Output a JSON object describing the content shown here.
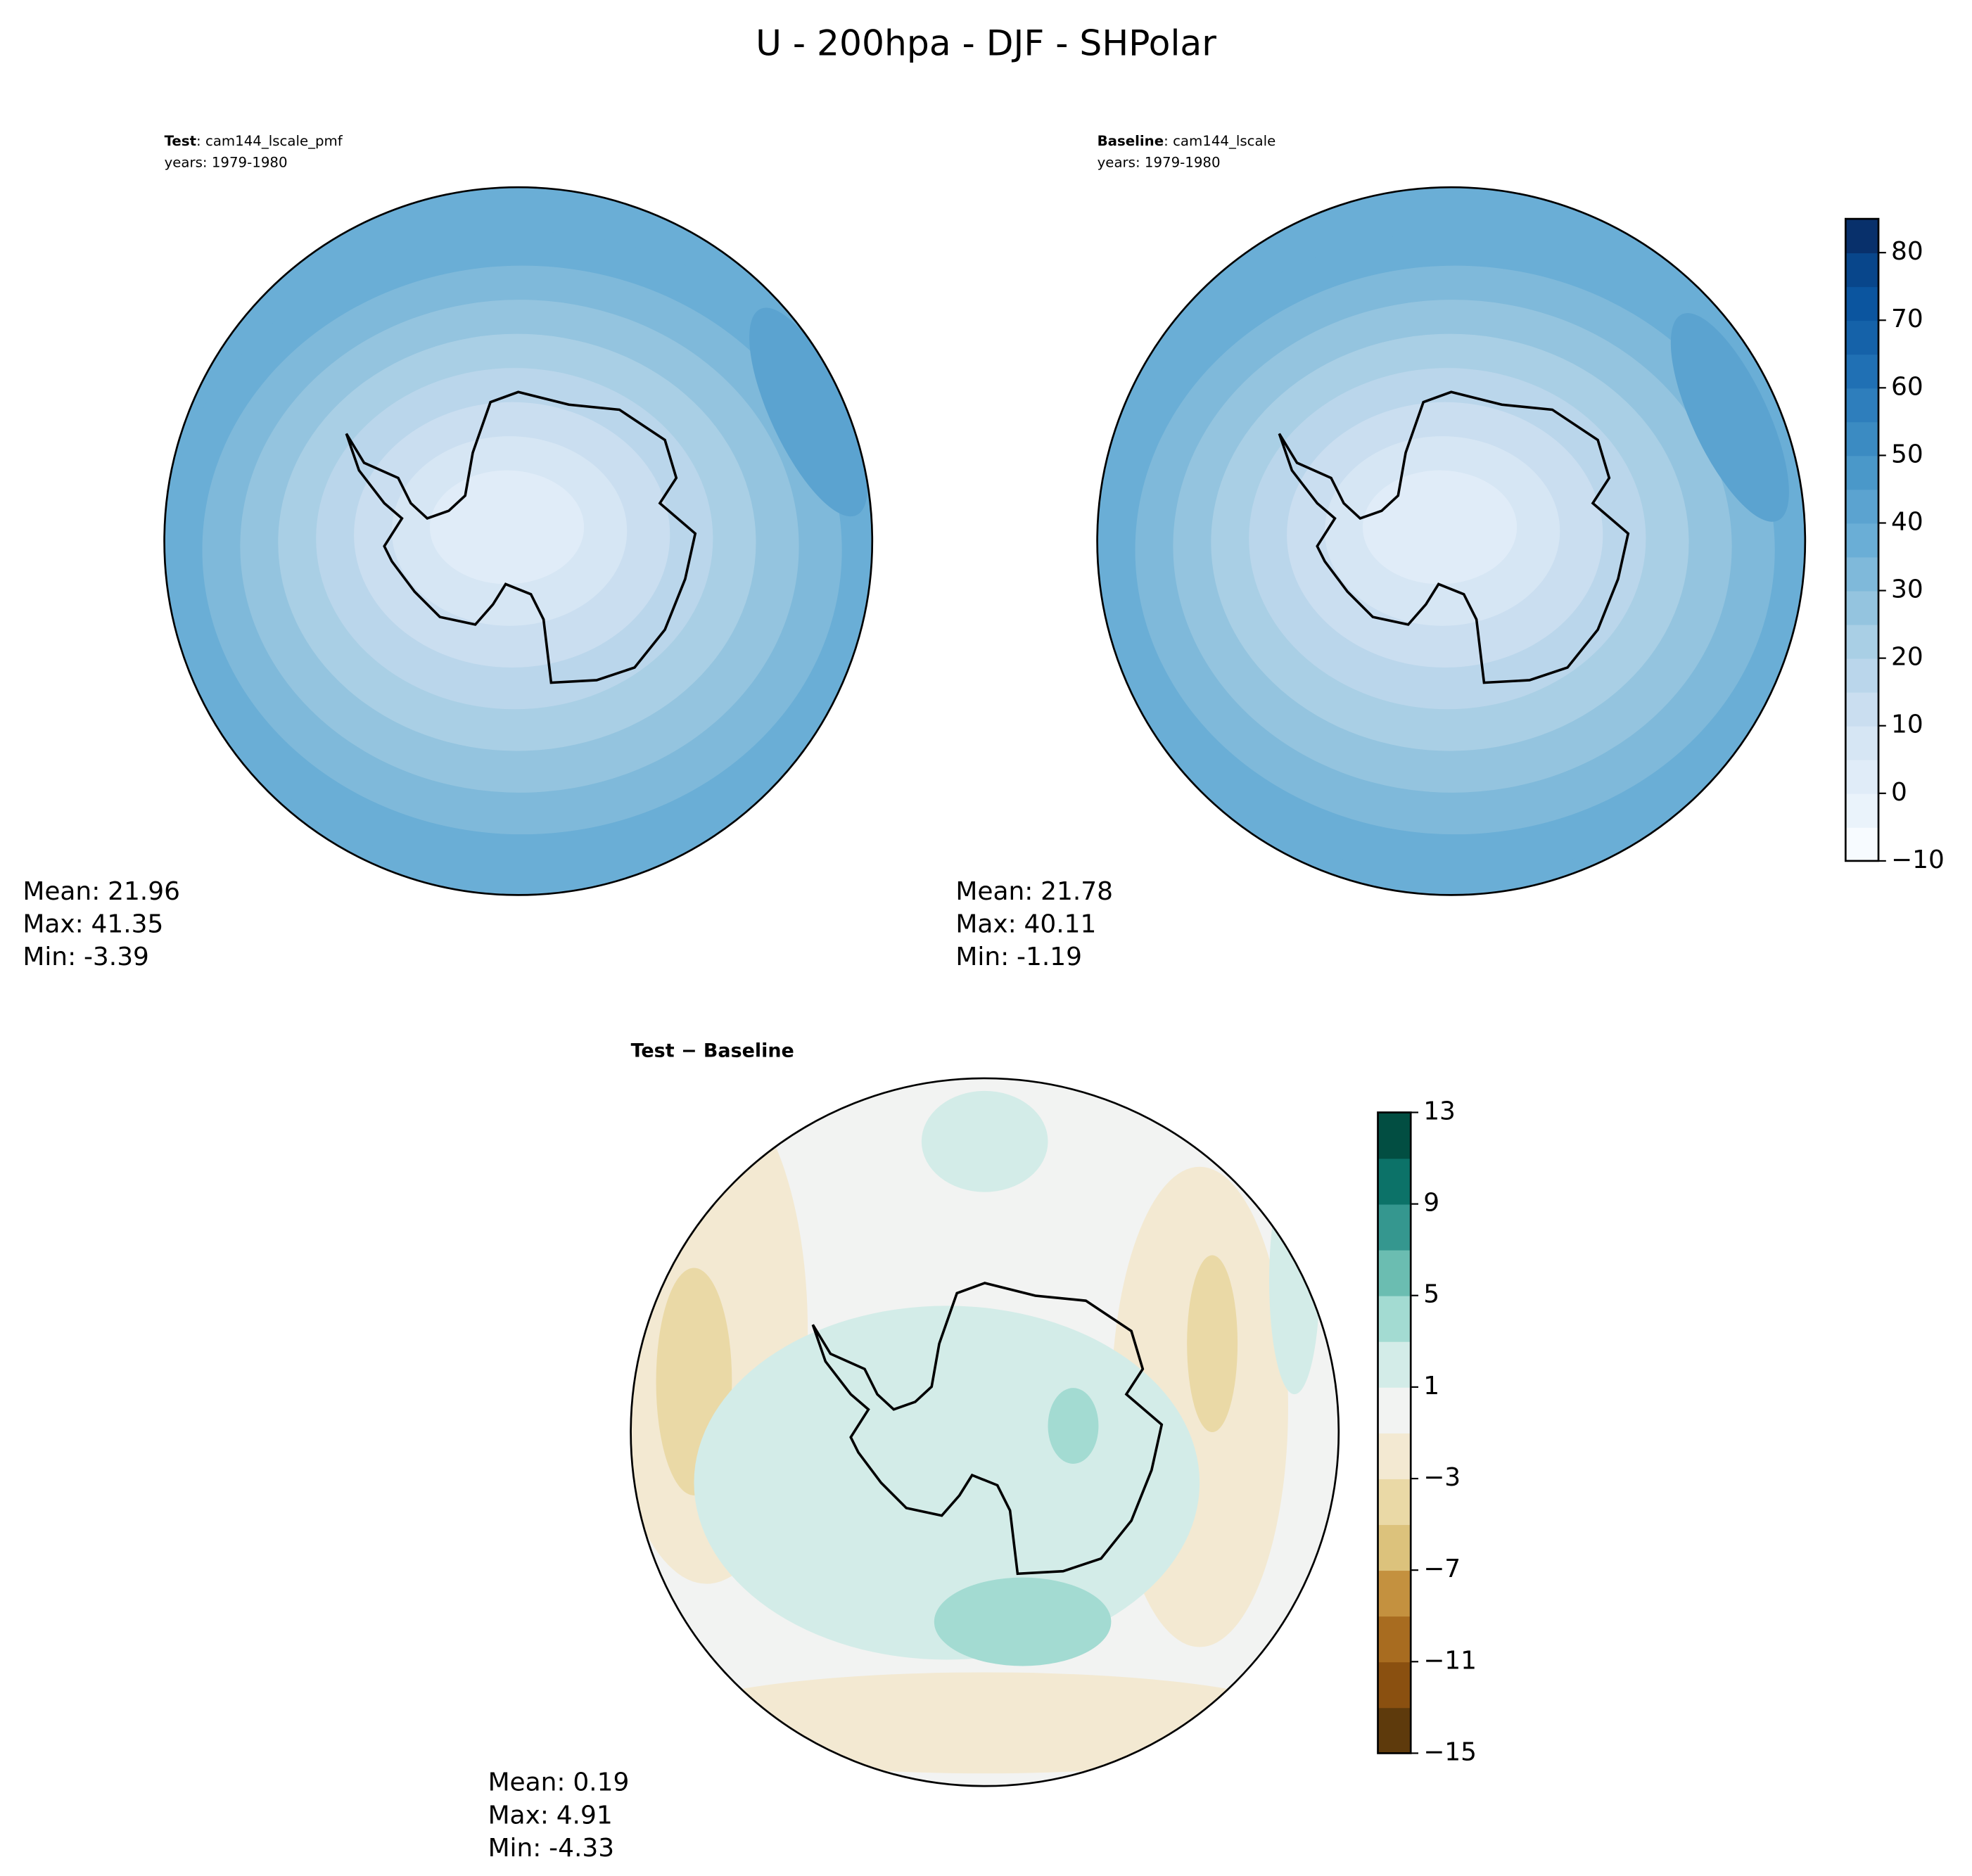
{
  "title": "U - 200hpa - DJF - SHPolar",
  "chart_data": [
    {
      "type": "contour",
      "case_label": "Test",
      "case_name": ": cam144_lscale_pmf",
      "subtitle": "years: 1979-1980",
      "stats": [
        {
          "label": "Mean:",
          "value": 21.96
        },
        {
          "label": "Max:",
          "value": 41.35
        },
        {
          "label": "Min:",
          "value": -3.39
        }
      ]
    },
    {
      "type": "contour",
      "case_label": "Baseline",
      "case_name": ": cam144_lscale",
      "subtitle": "years: 1979-1980",
      "stats": [
        {
          "label": "Mean:",
          "value": 21.78
        },
        {
          "label": "Max:",
          "value": 40.11
        },
        {
          "label": "Min:",
          "value": -1.19
        }
      ],
      "colorbar": {
        "ylim": [
          -10,
          85
        ],
        "yticks": [
          {
            "value": -10,
            "label": "−10"
          },
          0,
          10,
          20,
          30,
          40,
          50,
          60,
          70,
          80
        ],
        "levels": [
          -10,
          -5,
          0,
          5,
          10,
          15,
          20,
          25,
          30,
          35,
          40,
          45,
          50,
          55,
          60,
          65,
          70,
          75,
          80,
          85
        ],
        "colors": [
          "#f7fbff",
          "#eaf3fb",
          "#e0ecf8",
          "#d6e6f4",
          "#cadef0",
          "#bad6eb",
          "#a9cfe5",
          "#94c4df",
          "#7fb9da",
          "#6aaed6",
          "#5ba3d0",
          "#4a98c9",
          "#3b8bc2",
          "#2e7ebc",
          "#2070b4",
          "#1562a9",
          "#0b559f",
          "#08468b",
          "#08306b"
        ]
      }
    },
    {
      "type": "contour",
      "title": "Test − Baseline",
      "stats": [
        {
          "label": "Mean:",
          "value": 0.19
        },
        {
          "label": "Max:",
          "value": 4.91
        },
        {
          "label": "Min:",
          "value": -4.33
        }
      ],
      "colorbar": {
        "ylim": [
          -15,
          13
        ],
        "yticks": [
          {
            "value": -15,
            "label": "−15"
          },
          {
            "value": -11,
            "label": "−11"
          },
          {
            "value": -7,
            "label": "−7"
          },
          {
            "value": -3,
            "label": "−3"
          },
          1,
          5,
          9,
          13
        ],
        "levels": [
          -15,
          -13,
          -11,
          -9,
          -7,
          -5,
          -3,
          -1,
          1,
          3,
          5,
          7,
          9,
          11,
          13
        ],
        "colors": [
          "#5e3a0c",
          "#8a5010",
          "#a86c20",
          "#c4913f",
          "#dcc27c",
          "#ead9a6",
          "#f3e9d2",
          "#f2f3f2",
          "#d3ece8",
          "#a3dbd2",
          "#6bbdb1",
          "#35978f",
          "#0c7268",
          "#024e42"
        ]
      }
    }
  ]
}
